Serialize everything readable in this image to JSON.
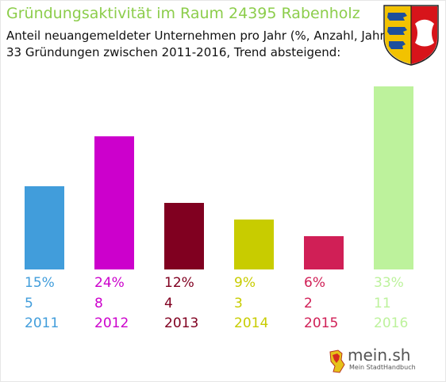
{
  "chart_data": {
    "type": "bar",
    "title": "Gründungsaktivität im Raum 24395 Rabenholz",
    "subtitle_lines": [
      "Anteil neuangemeldeter Unternehmen pro Jahr (%, Anzahl, Jahr)",
      "33 Gründungen zwischen 2011-2016, Trend absteigend:"
    ],
    "categories": [
      "2011",
      "2012",
      "2013",
      "2014",
      "2015",
      "2016"
    ],
    "values": [
      5,
      8,
      4,
      3,
      2,
      11
    ],
    "percent_labels": [
      "15%",
      "24%",
      "12%",
      "9%",
      "6%",
      "33%"
    ],
    "count_labels": [
      "5",
      "8",
      "4",
      "3",
      "2",
      "11"
    ],
    "colors": [
      "#419ddb",
      "#cc00cc",
      "#800020",
      "#c8cc00",
      "#d01f56",
      "#bdf29c"
    ],
    "ylim": [
      0,
      11
    ],
    "grid": false,
    "legend": "none"
  },
  "branding": {
    "crest": "schleswig-holstein-coat-of-arms",
    "logo_text": "mein.sh",
    "logo_tagline": "Mein StadtHandbuch"
  }
}
